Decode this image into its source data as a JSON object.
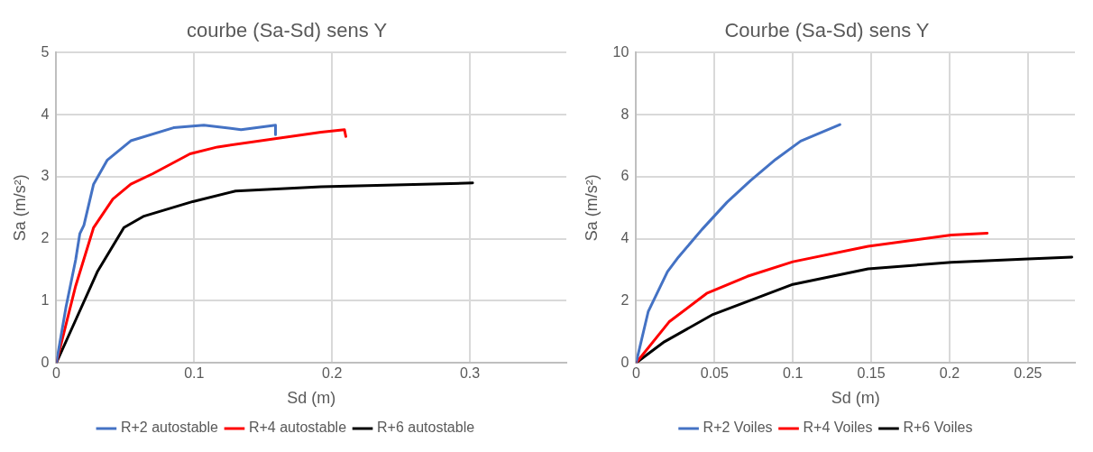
{
  "chart_data": [
    {
      "type": "line",
      "title": "courbe (Sa-Sd) sens Y",
      "xlabel": "Sd (m)",
      "ylabel": "Sa (m/s²)",
      "xlim": [
        0,
        0.37
      ],
      "xticks": [
        0,
        0.1,
        0.2,
        0.3
      ],
      "ylim": [
        0,
        5
      ],
      "yticks": [
        0,
        1,
        2,
        3,
        4,
        5
      ],
      "grid": true,
      "legend": "bottom",
      "marker": "none",
      "line_style": "solid",
      "series": [
        {
          "name": "R+2 autostable",
          "color": "#4472c4",
          "x": [
            0,
            0.007,
            0.014,
            0.017,
            0.02,
            0.027,
            0.037,
            0.054,
            0.085,
            0.107,
            0.134,
            0.159,
            0.159
          ],
          "values": [
            0,
            0.9,
            1.66,
            2.08,
            2.22,
            2.88,
            3.27,
            3.58,
            3.79,
            3.83,
            3.76,
            3.83,
            3.68
          ]
        },
        {
          "name": "R+4 autostable",
          "color": "#ff0000",
          "x": [
            0,
            0.014,
            0.027,
            0.041,
            0.054,
            0.07,
            0.097,
            0.117,
            0.192,
            0.209,
            0.21
          ],
          "values": [
            0,
            1.24,
            2.18,
            2.64,
            2.88,
            3.05,
            3.37,
            3.48,
            3.72,
            3.76,
            3.65
          ]
        },
        {
          "name": "R+6 autostable",
          "color": "#000000",
          "x": [
            0,
            0.014,
            0.03,
            0.049,
            0.063,
            0.099,
            0.13,
            0.192,
            0.302
          ],
          "values": [
            0,
            0.69,
            1.48,
            2.18,
            2.36,
            2.6,
            2.77,
            2.84,
            2.9
          ]
        }
      ]
    },
    {
      "type": "line",
      "title": "Courbe (Sa-Sd) sens Y",
      "xlabel": "Sd (m)",
      "ylabel": "Sa (m/s²)",
      "xlim": [
        0,
        0.28
      ],
      "xticks": [
        0,
        0.05,
        0.1,
        0.15,
        0.2,
        0.25
      ],
      "ylim": [
        0,
        10
      ],
      "yticks": [
        0,
        2,
        4,
        6,
        8,
        10
      ],
      "grid": true,
      "legend": "bottom",
      "marker": "none",
      "line_style": "solid",
      "series": [
        {
          "name": "R+2 Voiles",
          "color": "#4472c4",
          "x": [
            0,
            0.0077,
            0.02,
            0.027,
            0.042,
            0.058,
            0.073,
            0.089,
            0.105,
            0.13
          ],
          "values": [
            0,
            1.65,
            2.94,
            3.41,
            4.3,
            5.18,
            5.88,
            6.56,
            7.15,
            7.68
          ]
        },
        {
          "name": "R+4 Voiles",
          "color": "#ff0000",
          "x": [
            0,
            0.021,
            0.045,
            0.071,
            0.1,
            0.148,
            0.201,
            0.224
          ],
          "values": [
            0,
            1.32,
            2.24,
            2.79,
            3.26,
            3.76,
            4.12,
            4.18
          ]
        },
        {
          "name": "R+6 Voiles",
          "color": "#000000",
          "x": [
            0,
            0.018,
            0.049,
            0.1,
            0.148,
            0.201,
            0.25,
            0.278
          ],
          "values": [
            0,
            0.68,
            1.56,
            2.53,
            3.03,
            3.24,
            3.35,
            3.41
          ]
        }
      ]
    }
  ]
}
